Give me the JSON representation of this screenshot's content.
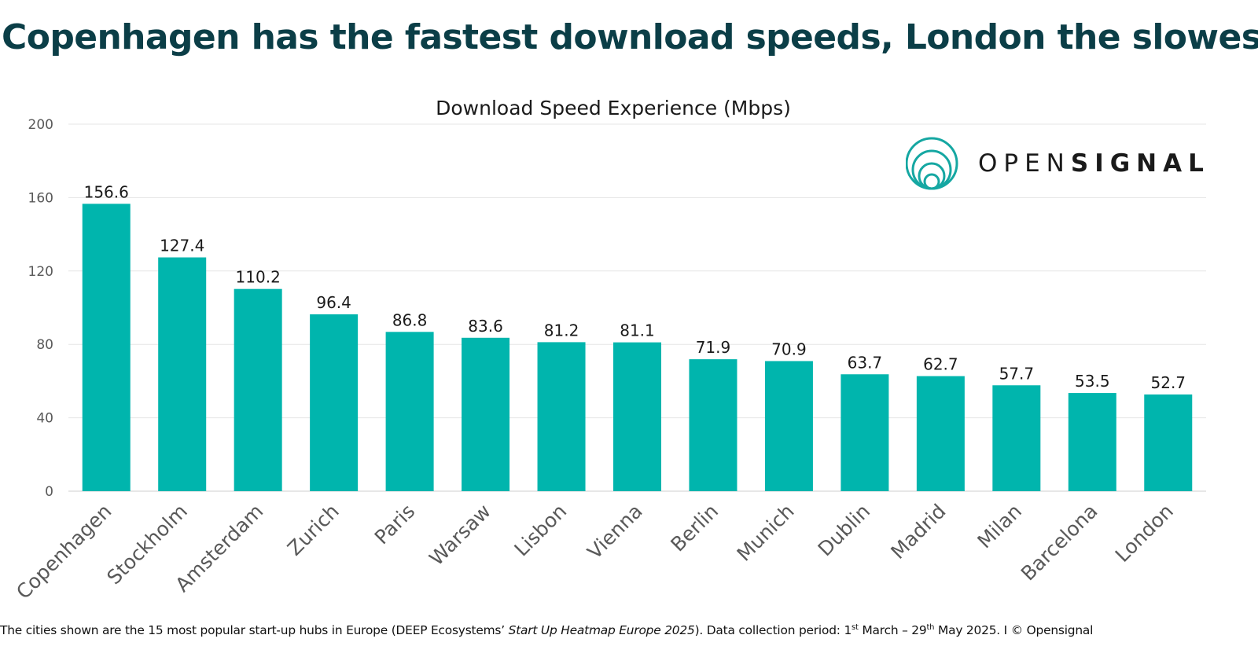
{
  "headline": "Copenhagen has the fastest download speeds, London the slowest",
  "logo": {
    "icon": "opensignal-concentric-circles-icon",
    "word_light": "OPEN",
    "word_bold": "SIGNAL",
    "color": "#15a7a2"
  },
  "footnote": {
    "part1": "The cities shown are the 15 most popular start-up hubs in Europe (DEEP Ecosystems’ ",
    "italic": "Start Up Heatmap Europe 2025",
    "part2": "). Data collection period: 1",
    "sup1": "st",
    "part3": " March – 29",
    "sup2": "th",
    "part4": " May 2025. I © Opensignal"
  },
  "colors": {
    "bar": "#00b5ad",
    "headline": "#0b3e47",
    "gridline": "#e6e6e6"
  },
  "chart_data": {
    "type": "bar",
    "title": "Download Speed Experience (Mbps)",
    "categories": [
      "Copenhagen",
      "Stockholm",
      "Amsterdam",
      "Zurich",
      "Paris",
      "Warsaw",
      "Lisbon",
      "Vienna",
      "Berlin",
      "Munich",
      "Dublin",
      "Madrid",
      "Milan",
      "Barcelona",
      "London"
    ],
    "values": [
      156.6,
      127.4,
      110.2,
      96.4,
      86.8,
      83.6,
      81.2,
      81.1,
      71.9,
      70.9,
      63.7,
      62.7,
      57.7,
      53.5,
      52.7
    ],
    "value_labels": [
      "156.6",
      "127.4",
      "110.2",
      "96.4",
      "86.8",
      "83.6",
      "81.2",
      "81.1",
      "71.9",
      "70.9",
      "63.7",
      "62.7",
      "57.7",
      "53.5",
      "52.7"
    ],
    "ylim": [
      0,
      200
    ],
    "yticks": [
      0,
      40,
      80,
      120,
      160,
      200
    ],
    "ytick_labels": [
      "0",
      "40",
      "80",
      "120",
      "160",
      "200"
    ],
    "grid": true,
    "legend": "none",
    "xlabel": "",
    "ylabel": ""
  }
}
